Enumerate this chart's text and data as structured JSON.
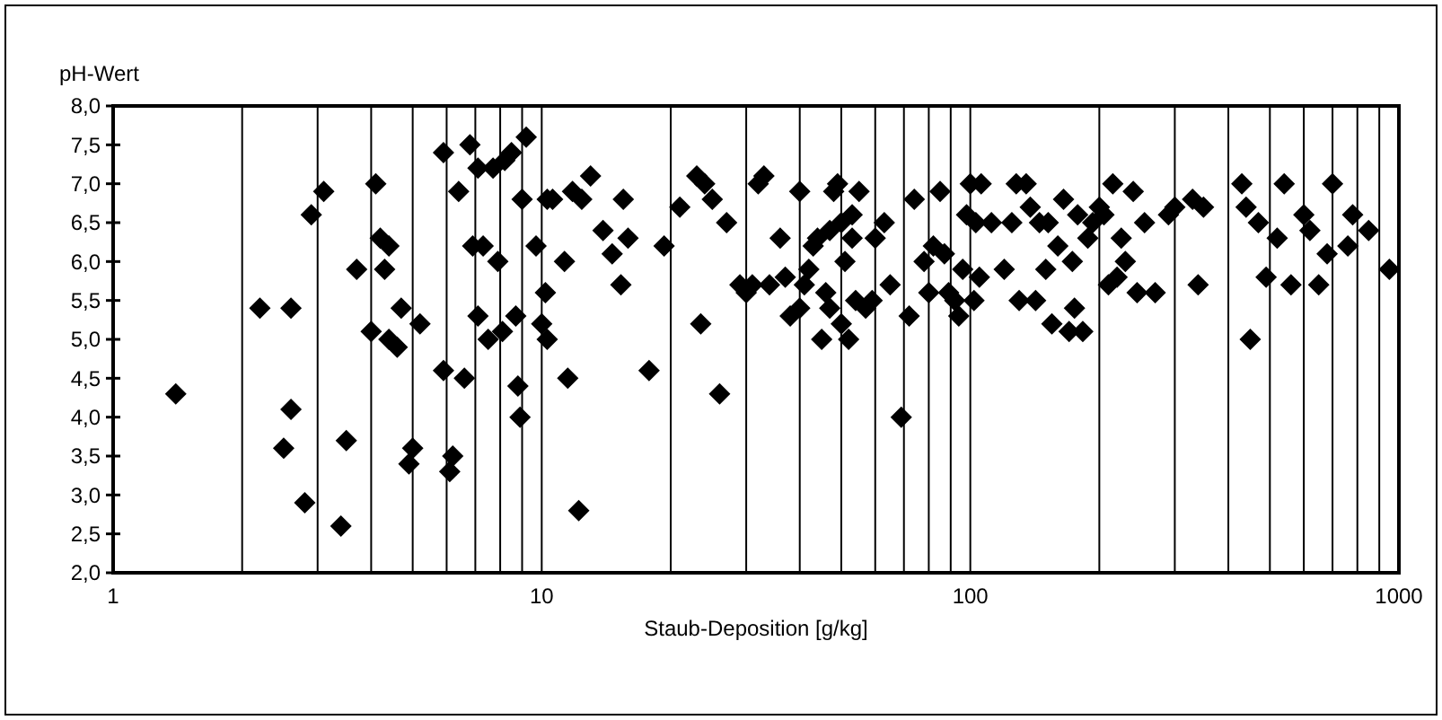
{
  "chart_data": {
    "type": "scatter",
    "xlabel": "Staub-Deposition [g/kg]",
    "ylabel": "pH-Wert",
    "log": "x",
    "grid": "x",
    "marker": "diamond",
    "xlim": [
      1,
      1000
    ],
    "ylim": [
      2,
      8
    ],
    "xticks": [
      1,
      {
        "value": 2,
        "label": null
      },
      {
        "value": 3,
        "label": null
      },
      {
        "value": 4,
        "label": null
      },
      {
        "value": 5,
        "label": null
      },
      {
        "value": 6,
        "label": null
      },
      {
        "value": 7,
        "label": null
      },
      {
        "value": 8,
        "label": null
      },
      {
        "value": 9,
        "label": null
      },
      10,
      {
        "value": 20,
        "label": null
      },
      {
        "value": 30,
        "label": null
      },
      {
        "value": 40,
        "label": null
      },
      {
        "value": 50,
        "label": null
      },
      {
        "value": 60,
        "label": null
      },
      {
        "value": 70,
        "label": null
      },
      {
        "value": 80,
        "label": null
      },
      {
        "value": 90,
        "label": null
      },
      100,
      {
        "value": 200,
        "label": null
      },
      {
        "value": 300,
        "label": null
      },
      {
        "value": 400,
        "label": null
      },
      {
        "value": 500,
        "label": null
      },
      {
        "value": 600,
        "label": null
      },
      {
        "value": 700,
        "label": null
      },
      {
        "value": 800,
        "label": null
      },
      {
        "value": 900,
        "label": null
      },
      1000
    ],
    "yticks": [
      {
        "value": 2,
        "label": "2,0"
      },
      {
        "value": 2.5,
        "label": "2,5"
      },
      {
        "value": 3,
        "label": "3,0"
      },
      {
        "value": 3.5,
        "label": "3,5"
      },
      {
        "value": 4,
        "label": "4,0"
      },
      {
        "value": 4.5,
        "label": "4,5"
      },
      {
        "value": 5,
        "label": "5,0"
      },
      {
        "value": 5.5,
        "label": "5,5"
      },
      {
        "value": 6,
        "label": "6,0"
      },
      {
        "value": 6.5,
        "label": "6,5"
      },
      {
        "value": 7,
        "label": "7,0"
      },
      {
        "value": 7.5,
        "label": "7,5"
      },
      {
        "value": 8,
        "label": "8,0"
      }
    ],
    "series": [
      {
        "color": "#000000",
        "x": [
          1.4,
          2.2,
          2.5,
          2.6,
          2.6,
          2.8,
          2.9,
          3.1,
          3.4,
          3.5,
          3.7,
          4.0,
          4.1,
          4.2,
          4.3,
          4.4,
          4.4,
          4.6,
          4.7,
          4.9,
          5.0,
          5.2,
          5.9,
          5.9,
          6.1,
          6.2,
          6.4,
          6.6,
          6.8,
          6.9,
          7.1,
          7.1,
          7.3,
          7.5,
          7.7,
          7.9,
          8.1,
          8.2,
          8.5,
          8.7,
          8.8,
          8.9,
          9.2,
          9.0,
          9.7,
          10,
          10.2,
          10.3,
          10.6,
          10.3,
          11.3,
          11.5,
          11.8,
          12.2,
          12.4,
          13,
          13.9,
          14.6,
          15.3,
          15.5,
          15.9,
          17.8,
          19.3,
          21,
          23,
          24,
          23.5,
          25,
          26,
          27,
          29,
          30,
          31,
          32,
          33,
          34,
          36,
          37,
          38,
          40,
          40,
          41,
          42,
          43,
          44,
          45,
          46,
          47,
          47,
          48,
          49,
          50,
          50,
          51,
          52,
          53,
          53,
          54,
          55,
          57,
          59,
          60,
          63,
          65,
          69,
          72,
          74,
          78,
          80,
          82,
          85,
          87,
          89,
          92,
          94,
          96,
          98,
          100,
          102,
          103,
          105,
          106,
          112,
          120,
          125,
          128,
          130,
          135,
          138,
          142,
          145,
          150,
          152,
          155,
          160,
          165,
          170,
          173,
          175,
          178,
          183,
          188,
          193,
          200,
          205,
          210,
          215,
          220,
          225,
          230,
          240,
          245,
          255,
          270,
          290,
          300,
          330,
          340,
          350,
          430,
          440,
          450,
          470,
          490,
          520,
          540,
          560,
          600,
          620,
          650,
          680,
          700,
          760,
          780,
          850,
          950
        ],
        "values": [
          4.3,
          5.4,
          3.6,
          4.1,
          5.4,
          2.9,
          6.6,
          6.9,
          2.6,
          3.7,
          5.9,
          5.1,
          7.0,
          6.3,
          5.9,
          6.2,
          5.0,
          4.9,
          5.4,
          3.4,
          3.6,
          5.2,
          7.4,
          4.6,
          3.3,
          3.5,
          6.9,
          4.5,
          7.5,
          6.2,
          7.2,
          5.3,
          6.2,
          5.0,
          7.2,
          6.0,
          5.1,
          7.3,
          7.4,
          5.3,
          4.4,
          4.0,
          7.6,
          6.8,
          6.2,
          5.2,
          5.6,
          6.8,
          6.8,
          5.0,
          6.0,
          4.5,
          6.9,
          2.8,
          6.8,
          7.1,
          6.4,
          6.1,
          5.7,
          6.8,
          6.3,
          4.6,
          6.2,
          6.7,
          7.1,
          7.0,
          5.2,
          6.8,
          4.3,
          6.5,
          5.7,
          5.6,
          5.7,
          7.0,
          7.1,
          5.7,
          6.3,
          5.8,
          5.3,
          5.4,
          6.9,
          5.7,
          5.9,
          6.2,
          6.3,
          5.0,
          5.6,
          6.4,
          5.4,
          6.9,
          7.0,
          6.5,
          5.2,
          6.0,
          5.0,
          6.6,
          6.3,
          5.5,
          6.9,
          5.4,
          5.5,
          6.3,
          6.5,
          5.7,
          4.0,
          5.3,
          6.8,
          6.0,
          5.6,
          6.2,
          6.9,
          6.1,
          5.6,
          5.5,
          5.3,
          5.9,
          6.6,
          7.0,
          5.5,
          6.5,
          5.8,
          7.0,
          6.5,
          5.9,
          6.5,
          7.0,
          5.5,
          7.0,
          6.7,
          5.5,
          6.5,
          5.9,
          6.5,
          5.2,
          6.2,
          6.8,
          5.1,
          6.0,
          5.4,
          6.6,
          5.1,
          6.3,
          6.5,
          6.7,
          6.6,
          5.7,
          7.0,
          5.8,
          6.3,
          6.0,
          6.9,
          5.6,
          6.5,
          5.6,
          6.6,
          6.7,
          6.8,
          5.7,
          6.7,
          7.0,
          6.7,
          5.0,
          6.5,
          5.8,
          6.3,
          7.0,
          5.7,
          6.6,
          6.4,
          5.7,
          6.1,
          7.0,
          6.2,
          6.6,
          6.4,
          5.9
        ]
      }
    ]
  }
}
